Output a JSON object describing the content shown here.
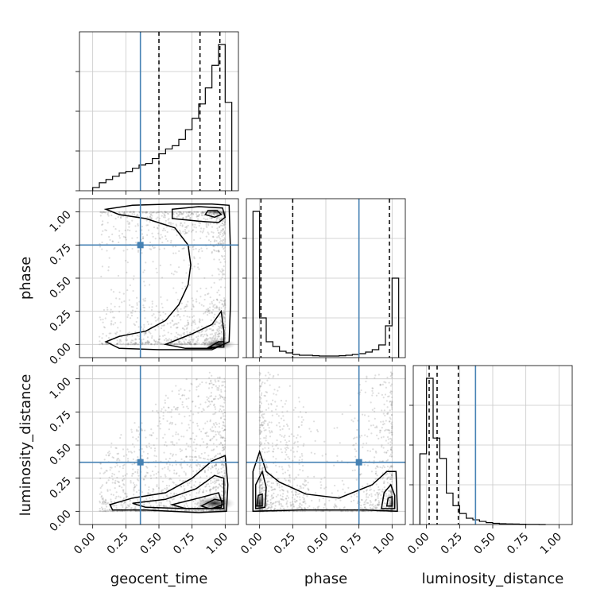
{
  "chart_data": {
    "type": "corner",
    "parameters": [
      "geocent_time",
      "phase",
      "luminosity_distance"
    ],
    "axis_labels": [
      "geocent_time",
      "phase",
      "luminosity_distance"
    ],
    "range": [
      0,
      1
    ],
    "tick_labels": [
      "0.00",
      "0.25",
      "0.50",
      "0.75",
      "1.00"
    ],
    "truths": [
      0.36,
      0.75,
      0.37
    ],
    "quantiles": [
      [
        0.5,
        0.81,
        0.96
      ],
      [
        0.01,
        0.25,
        0.98
      ],
      [
        0.02,
        0.08,
        0.24
      ]
    ],
    "grid": true,
    "colors": {
      "truth": "#4682b4",
      "hist": "#000000",
      "points": "#888888"
    },
    "histograms": [
      {
        "param": "geocent_time",
        "bins": [
          0.0,
          0.05,
          0.1,
          0.15,
          0.2,
          0.25,
          0.3,
          0.35,
          0.4,
          0.45,
          0.5,
          0.55,
          0.6,
          0.65,
          0.7,
          0.75,
          0.8,
          0.85,
          0.9,
          0.95,
          1.0,
          1.05
        ],
        "counts": [
          0.02,
          0.05,
          0.07,
          0.09,
          0.11,
          0.12,
          0.14,
          0.16,
          0.17,
          0.2,
          0.23,
          0.26,
          0.28,
          0.32,
          0.38,
          0.45,
          0.54,
          0.64,
          0.78,
          0.91,
          0.55
        ]
      },
      {
        "param": "phase",
        "bins": [
          -0.05,
          0.0,
          0.05,
          0.1,
          0.15,
          0.2,
          0.25,
          0.3,
          0.35,
          0.4,
          0.45,
          0.5,
          0.55,
          0.6,
          0.65,
          0.7,
          0.75,
          0.8,
          0.85,
          0.9,
          0.95,
          1.0,
          1.05
        ],
        "counts": [
          0.92,
          0.25,
          0.1,
          0.07,
          0.04,
          0.03,
          0.02,
          0.015,
          0.015,
          0.012,
          0.01,
          0.01,
          0.01,
          0.012,
          0.015,
          0.02,
          0.025,
          0.035,
          0.05,
          0.08,
          0.2,
          0.5
        ]
      },
      {
        "param": "luminosity_distance",
        "bins": [
          -0.05,
          0.0,
          0.05,
          0.1,
          0.15,
          0.2,
          0.25,
          0.3,
          0.35,
          0.4,
          0.45,
          0.5,
          0.55,
          0.6,
          0.65,
          0.7,
          0.75,
          0.8,
          0.85,
          0.9
        ],
        "counts": [
          0.45,
          0.93,
          0.55,
          0.42,
          0.2,
          0.12,
          0.07,
          0.04,
          0.03,
          0.02,
          0.012,
          0.008,
          0.005,
          0.004,
          0.003,
          0.002,
          0.001,
          0.001,
          0.0
        ]
      }
    ],
    "panels": [
      "geocent_time",
      "phase vs geocent_time",
      "phase",
      "luminosity_distance vs geocent_time",
      "luminosity_distance vs phase",
      "luminosity_distance"
    ]
  }
}
